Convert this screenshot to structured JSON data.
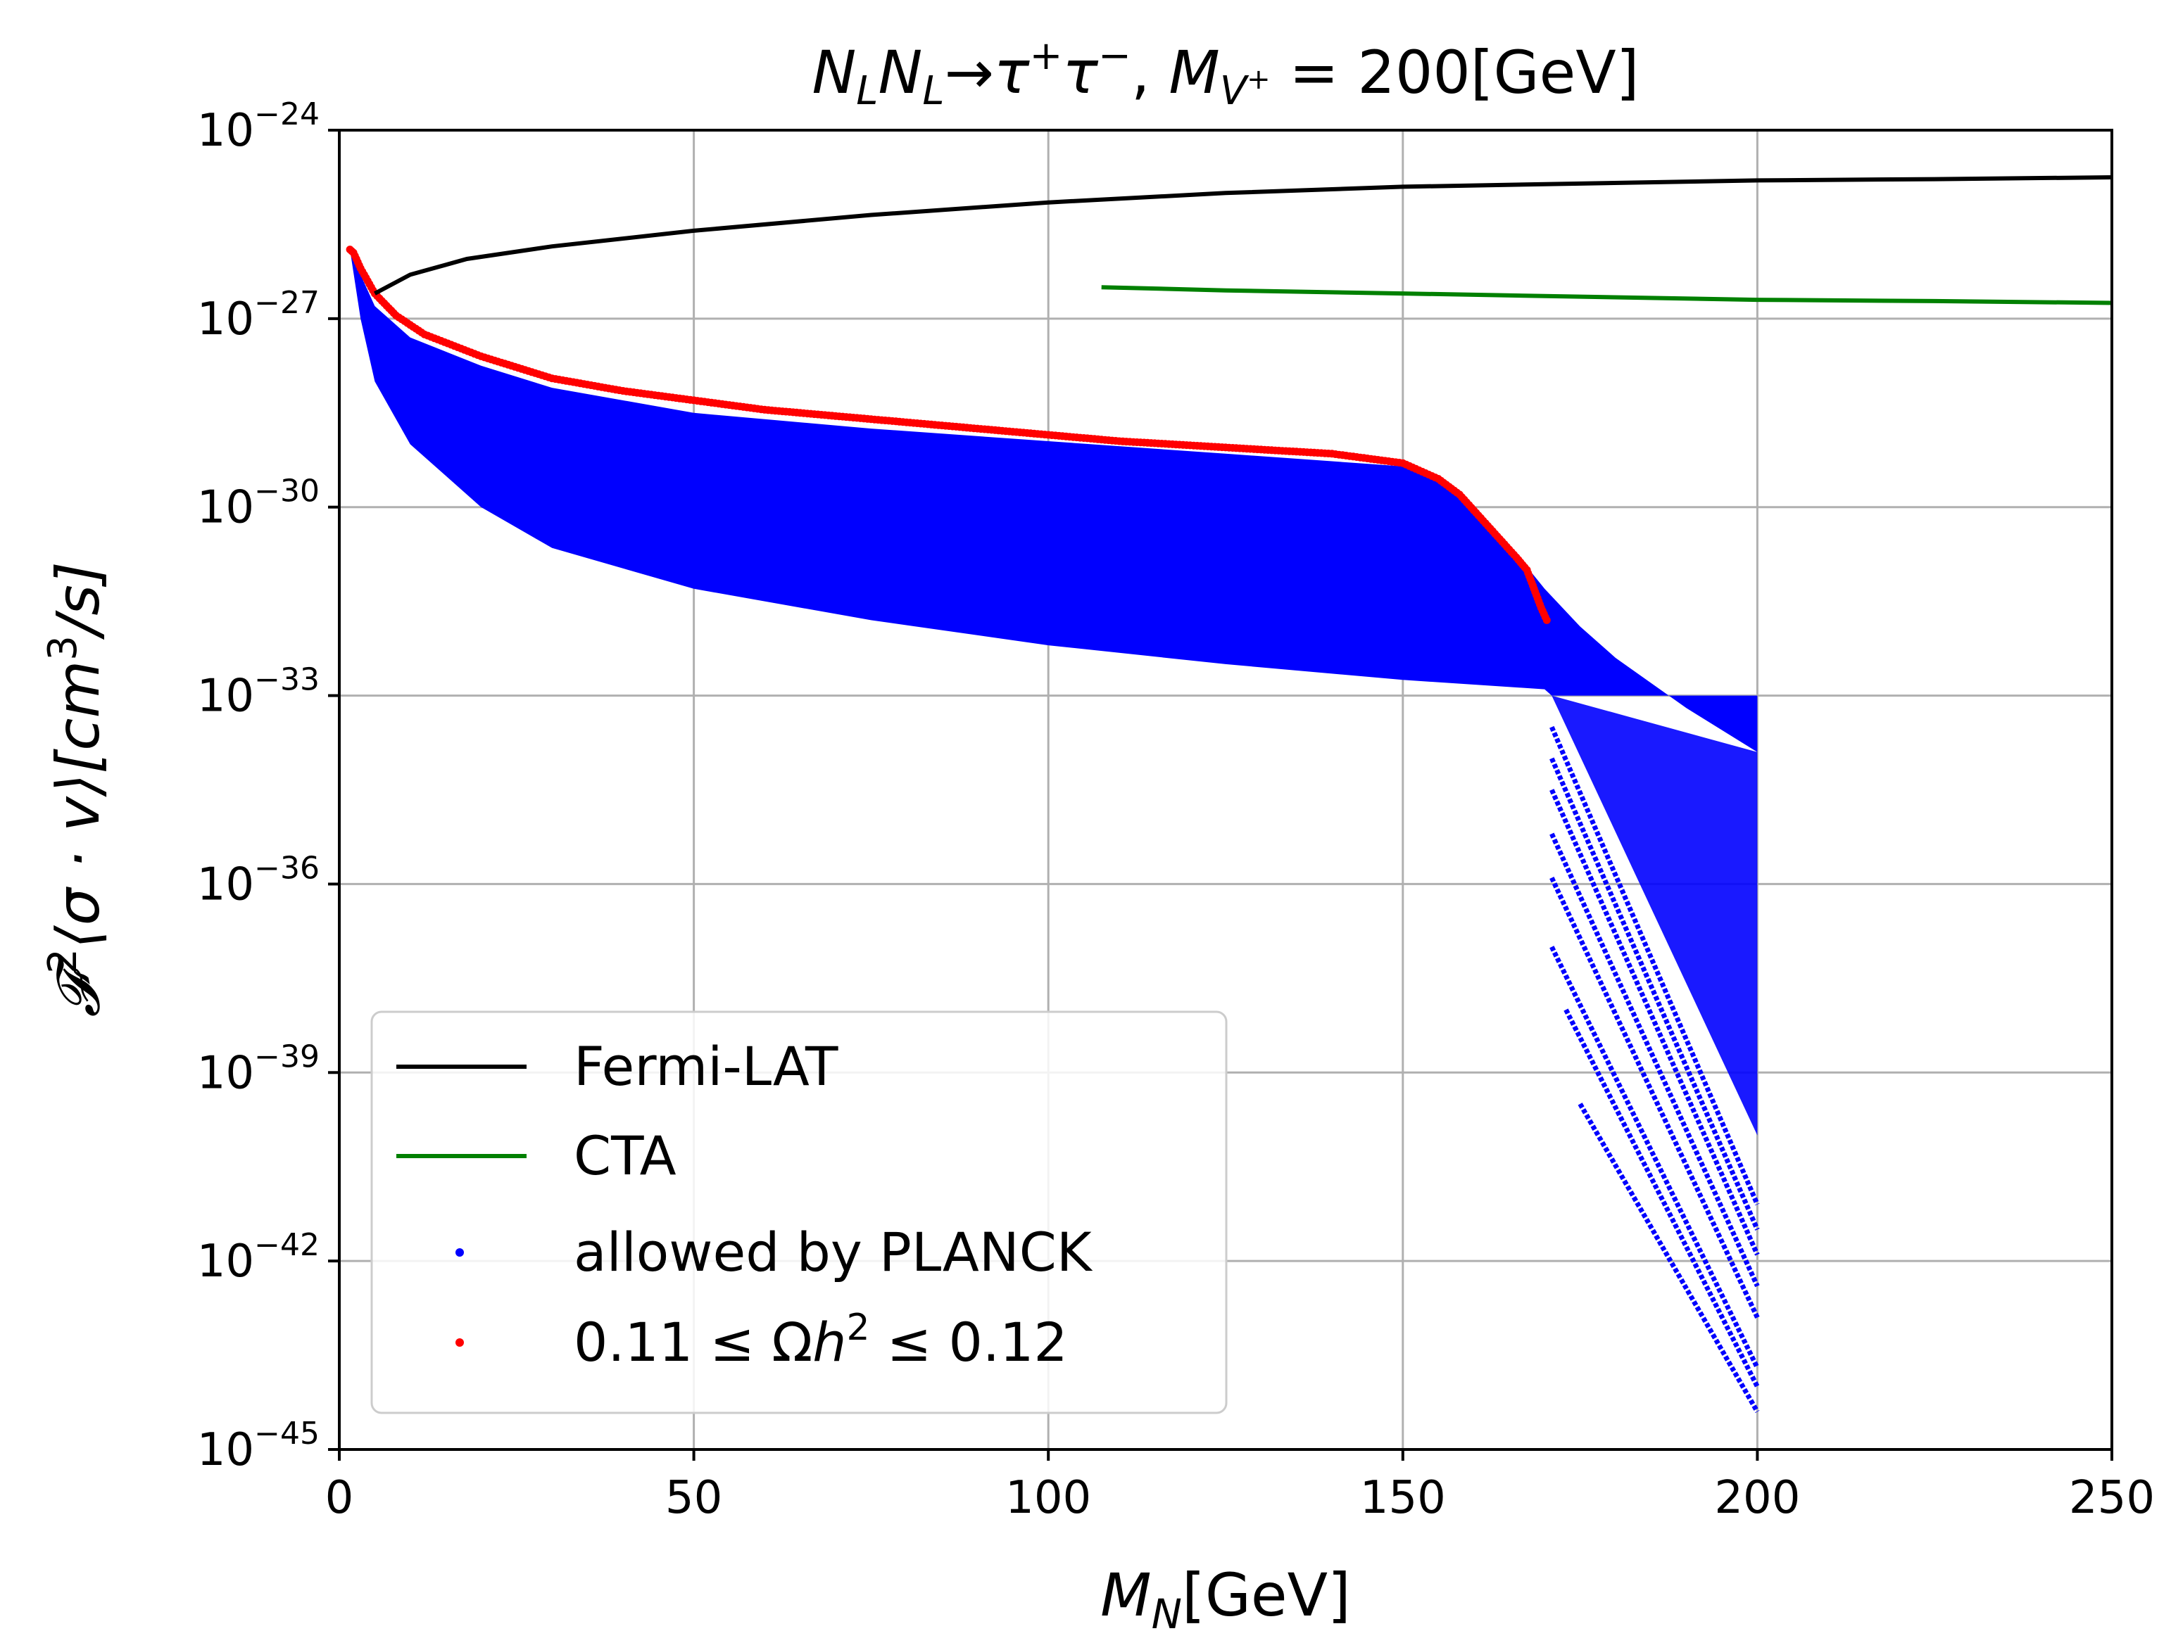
{
  "chart_data": {
    "type": "scatter",
    "title": {
      "main": "N_L N_L→τ⁺τ⁻, M_{V⁺} = 200[GeV]",
      "parts": {
        "n1": "N",
        "l1": "L",
        "n2": "N",
        "l2": "L",
        "arrow": "→",
        "tau1": "τ",
        "plus": "+",
        "tau2": "τ",
        "minus": "−",
        "comma": ", ",
        "m": "M",
        "v": "V",
        "vplus": "+",
        "eq": " = 200[GeV]"
      }
    },
    "xlabel": {
      "full": "M_N[GeV]",
      "m": "M",
      "n": "N",
      "unit": "[GeV]"
    },
    "ylabel": {
      "full": "F²⟨σ·v⟩[cm³/s]",
      "f": "𝓕",
      "two": "2",
      "bracket": "⟨σ · v⟩[cm",
      "three": "3",
      "end": "/s]"
    },
    "xlim": [
      0,
      250
    ],
    "ylim_log10": [
      -45,
      -24
    ],
    "x_ticks": [
      {
        "value": 0,
        "label": "0"
      },
      {
        "value": 50,
        "label": "50"
      },
      {
        "value": 100,
        "label": "100"
      },
      {
        "value": 150,
        "label": "150"
      },
      {
        "value": 200,
        "label": "200"
      },
      {
        "value": 250,
        "label": "250"
      }
    ],
    "y_ticks": [
      {
        "exp": -24,
        "base": "10",
        "sup": "−24"
      },
      {
        "exp": -27,
        "base": "10",
        "sup": "−27"
      },
      {
        "exp": -30,
        "base": "10",
        "sup": "−30"
      },
      {
        "exp": -33,
        "base": "10",
        "sup": "−33"
      },
      {
        "exp": -36,
        "base": "10",
        "sup": "−36"
      },
      {
        "exp": -39,
        "base": "10",
        "sup": "−39"
      },
      {
        "exp": -42,
        "base": "10",
        "sup": "−42"
      },
      {
        "exp": -45,
        "base": "10",
        "sup": "−45"
      }
    ],
    "grid": true,
    "legend_position": "lower-left",
    "series": [
      {
        "name": "Fermi-LAT",
        "kind": "line",
        "color": "#000000",
        "points": [
          [
            5,
            -26.6
          ],
          [
            10,
            -26.3
          ],
          [
            18,
            -26.05
          ],
          [
            30,
            -25.85
          ],
          [
            50,
            -25.6
          ],
          [
            75,
            -25.35
          ],
          [
            100,
            -25.15
          ],
          [
            125,
            -25.0
          ],
          [
            150,
            -24.9
          ],
          [
            175,
            -24.85
          ],
          [
            200,
            -24.8
          ],
          [
            225,
            -24.78
          ],
          [
            250,
            -24.75
          ]
        ]
      },
      {
        "name": "CTA",
        "kind": "line",
        "color": "#008000",
        "points": [
          [
            107.5,
            -26.5
          ],
          [
            125,
            -26.55
          ],
          [
            150,
            -26.6
          ],
          [
            175,
            -26.65
          ],
          [
            200,
            -26.7
          ],
          [
            225,
            -26.72
          ],
          [
            250,
            -26.75
          ]
        ]
      },
      {
        "name": "allowed by PLANCK",
        "kind": "band",
        "color": "#0000ff",
        "upper": [
          [
            1.5,
            -25.9
          ],
          [
            3,
            -26.3
          ],
          [
            5,
            -26.8
          ],
          [
            10,
            -27.3
          ],
          [
            20,
            -27.75
          ],
          [
            30,
            -28.1
          ],
          [
            50,
            -28.5
          ],
          [
            75,
            -28.75
          ],
          [
            100,
            -28.95
          ],
          [
            125,
            -29.15
          ],
          [
            150,
            -29.35
          ],
          [
            155,
            -29.55
          ],
          [
            160,
            -30.0
          ],
          [
            165,
            -30.6
          ],
          [
            170,
            -31.3
          ],
          [
            175,
            -31.9
          ],
          [
            180,
            -32.4
          ],
          [
            190,
            -33.2
          ],
          [
            200,
            -33.9
          ]
        ],
        "lower": [
          [
            1.5,
            -25.9
          ],
          [
            3,
            -27.0
          ],
          [
            5,
            -28.0
          ],
          [
            10,
            -29.0
          ],
          [
            20,
            -30.0
          ],
          [
            30,
            -30.65
          ],
          [
            50,
            -31.3
          ],
          [
            75,
            -31.8
          ],
          [
            100,
            -32.2
          ],
          [
            125,
            -32.5
          ],
          [
            150,
            -32.75
          ],
          [
            170,
            -32.9
          ],
          [
            171,
            -33.0
          ],
          [
            200,
            -33.0
          ]
        ],
        "tail_band": {
          "x_start": 171,
          "x_end": 200,
          "top_start": -33.0,
          "top_end": -33.9,
          "bottom_start": -33.0,
          "bottom_end": -40.0
        },
        "tail_streaks": [
          {
            "x0": 171,
            "y0": -33.5,
            "x1": 200,
            "y1": -41.1
          },
          {
            "x0": 171,
            "y0": -34.0,
            "x1": 200,
            "y1": -41.5
          },
          {
            "x0": 171,
            "y0": -34.5,
            "x1": 200,
            "y1": -41.9
          },
          {
            "x0": 171,
            "y0": -35.2,
            "x1": 200,
            "y1": -42.4
          },
          {
            "x0": 171,
            "y0": -35.9,
            "x1": 200,
            "y1": -42.9
          },
          {
            "x0": 171,
            "y0": -37.0,
            "x1": 200,
            "y1": -43.7
          },
          {
            "x0": 173,
            "y0": -38.0,
            "x1": 200,
            "y1": -44.0
          },
          {
            "x0": 175,
            "y0": -39.5,
            "x1": 200,
            "y1": -44.4
          }
        ]
      },
      {
        "name": "0.11 ≤ Ωh² ≤ 0.12",
        "kind": "scatter",
        "color": "#ff0000",
        "points": [
          [
            1.5,
            -25.9
          ],
          [
            2,
            -25.95
          ],
          [
            3,
            -26.2
          ],
          [
            5,
            -26.6
          ],
          [
            8,
            -26.95
          ],
          [
            12,
            -27.25
          ],
          [
            20,
            -27.6
          ],
          [
            30,
            -27.95
          ],
          [
            40,
            -28.15
          ],
          [
            50,
            -28.3
          ],
          [
            60,
            -28.45
          ],
          [
            75,
            -28.6
          ],
          [
            90,
            -28.75
          ],
          [
            100,
            -28.85
          ],
          [
            110,
            -28.95
          ],
          [
            125,
            -29.05
          ],
          [
            140,
            -29.15
          ],
          [
            150,
            -29.3
          ],
          [
            155,
            -29.55
          ],
          [
            158,
            -29.8
          ],
          [
            160,
            -30.05
          ],
          [
            162,
            -30.3
          ],
          [
            164,
            -30.55
          ],
          [
            166,
            -30.8
          ],
          [
            167.5,
            -31.0
          ],
          [
            168.5,
            -31.3
          ],
          [
            169.5,
            -31.6
          ],
          [
            170.5,
            -31.85
          ]
        ],
        "legend_label": {
          "prefix": "0.11 ≤ Ω",
          "h": "h",
          "sup": "2",
          "suffix": " ≤ 0.12"
        }
      }
    ]
  }
}
